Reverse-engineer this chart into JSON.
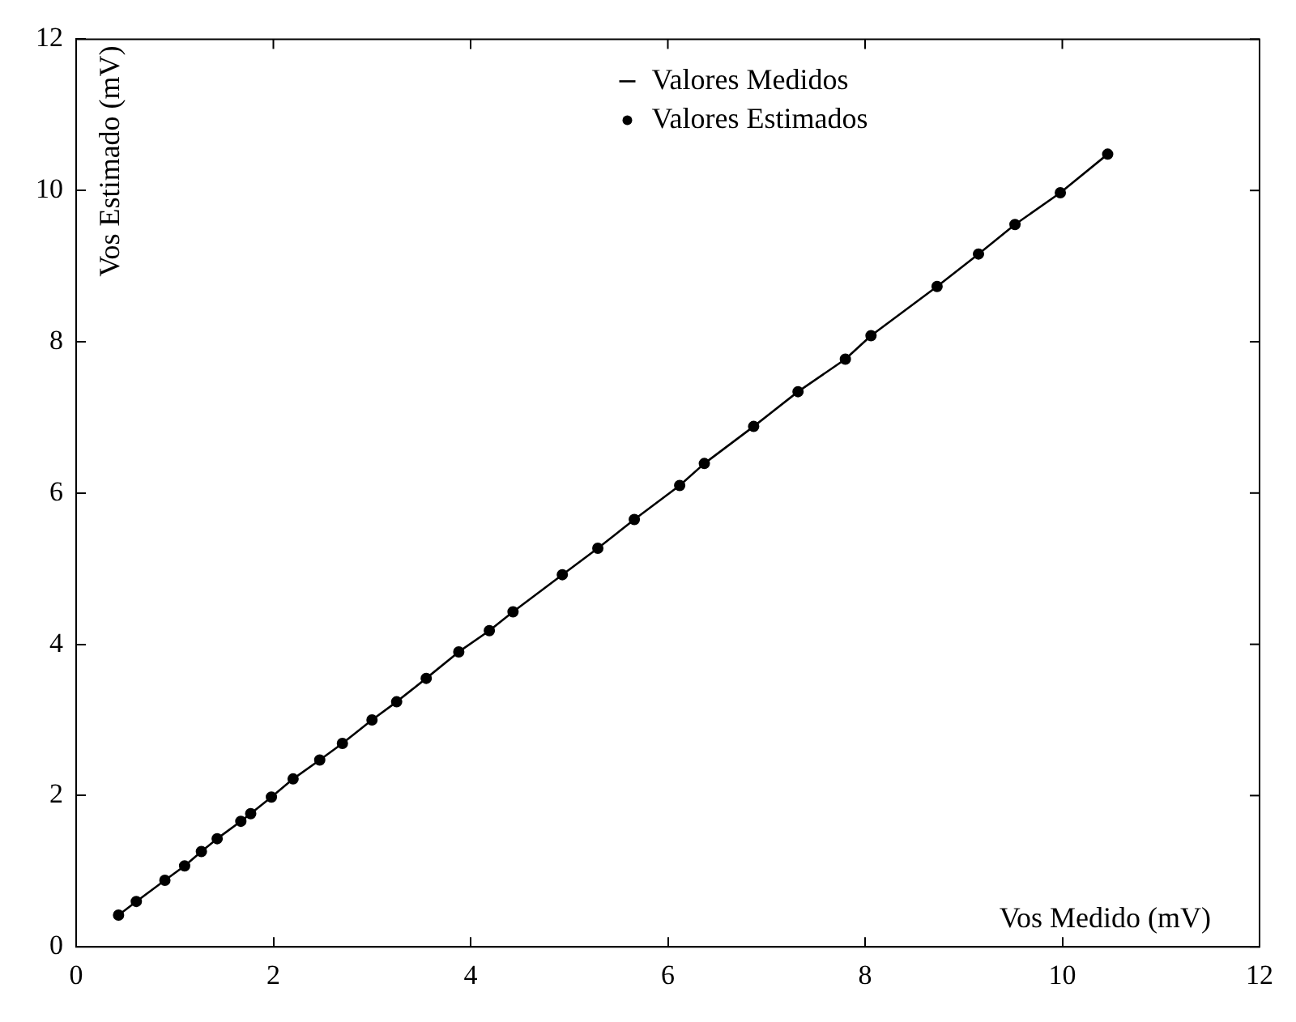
{
  "chart_data": {
    "type": "line",
    "xlabel": "Vos Medido (mV)",
    "ylabel": "Vos Estimado (mV)",
    "xlim": [
      0,
      12
    ],
    "xticks": [
      0,
      2,
      4,
      6,
      8,
      10,
      12
    ],
    "ylim": [
      0,
      12
    ],
    "yticks": [
      0,
      2,
      4,
      6,
      8,
      10,
      12
    ],
    "grid": false,
    "legend": "top",
    "series": [
      {
        "name": "Valores Medidos",
        "color": "#000000",
        "marker": "none",
        "line_style": "solid",
        "x": [
          0.43,
          0.61,
          0.9,
          1.1,
          1.27,
          1.43,
          1.67,
          1.77,
          1.98,
          2.2,
          2.47,
          2.7,
          3.0,
          3.25,
          3.55,
          3.88,
          4.19,
          4.43,
          4.93,
          5.29,
          5.66,
          6.12,
          6.37,
          6.87,
          7.32,
          7.8,
          8.06,
          8.73,
          9.15,
          9.52,
          9.98,
          10.46
        ],
        "values": [
          0.42,
          0.6,
          0.88,
          1.07,
          1.26,
          1.43,
          1.66,
          1.76,
          1.98,
          2.22,
          2.47,
          2.69,
          3.0,
          3.24,
          3.55,
          3.9,
          4.18,
          4.43,
          4.92,
          5.27,
          5.65,
          6.1,
          6.39,
          6.88,
          7.34,
          7.77,
          8.08,
          8.73,
          9.16,
          9.55,
          9.97,
          10.48
        ]
      },
      {
        "name": "Valores Estimados",
        "type": "scatter",
        "color": "#000000",
        "marker": "circle",
        "x": [
          0.43,
          0.61,
          0.9,
          1.1,
          1.27,
          1.43,
          1.67,
          1.77,
          1.98,
          2.2,
          2.47,
          2.7,
          3.0,
          3.25,
          3.55,
          3.88,
          4.19,
          4.43,
          4.93,
          5.29,
          5.66,
          6.12,
          6.37,
          6.87,
          7.32,
          7.8,
          8.06,
          8.73,
          9.15,
          9.52,
          9.98,
          10.46
        ],
        "values": [
          0.42,
          0.6,
          0.88,
          1.07,
          1.26,
          1.43,
          1.66,
          1.76,
          1.98,
          2.22,
          2.47,
          2.69,
          3.0,
          3.24,
          3.55,
          3.9,
          4.18,
          4.43,
          4.92,
          5.27,
          5.65,
          6.1,
          6.39,
          6.88,
          7.34,
          7.77,
          8.08,
          8.73,
          9.16,
          9.55,
          9.97,
          10.48
        ]
      }
    ]
  }
}
